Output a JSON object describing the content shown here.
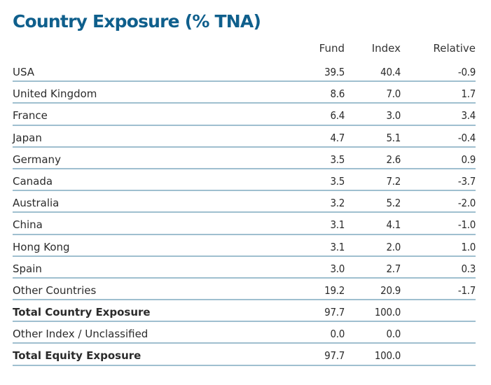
{
  "title": "Country Exposure (% TNA)",
  "columns": [
    "Fund",
    "Index",
    "Relative"
  ],
  "rows": [
    {
      "label": "USA",
      "fund": "39.5",
      "index": "40.4",
      "relative": "-0.9"
    },
    {
      "label": "United Kingdom",
      "fund": "8.6",
      "index": "7.0",
      "relative": "1.7"
    },
    {
      "label": "France",
      "fund": "6.4",
      "index": "3.0",
      "relative": "3.4"
    },
    {
      "label": "Japan",
      "fund": "4.7",
      "index": "5.1",
      "relative": "-0.4"
    },
    {
      "label": "Germany",
      "fund": "3.5",
      "index": "2.6",
      "relative": "0.9"
    },
    {
      "label": "Canada",
      "fund": "3.5",
      "index": "7.2",
      "relative": "-3.7"
    },
    {
      "label": "Australia",
      "fund": "3.2",
      "index": "5.2",
      "relative": "-2.0"
    },
    {
      "label": "China",
      "fund": "3.1",
      "index": "4.1",
      "relative": "-1.0"
    },
    {
      "label": "Hong Kong",
      "fund": "3.1",
      "index": "2.0",
      "relative": "1.0"
    },
    {
      "label": "Spain",
      "fund": "3.0",
      "index": "2.7",
      "relative": "0.3"
    },
    {
      "label": "Other Countries",
      "fund": "19.2",
      "index": "20.9",
      "relative": "-1.7"
    }
  ],
  "totals": [
    {
      "label": "Total Country Exposure",
      "fund": "97.7",
      "index": "100.0",
      "relative": ""
    },
    {
      "label": "Other Index / Unclassified",
      "fund": "0.0",
      "index": "0.0",
      "relative": ""
    },
    {
      "label": "Total Equity Exposure",
      "fund": "97.7",
      "index": "100.0",
      "relative": ""
    }
  ],
  "colors": {
    "title": "#0f5f8c",
    "rule": "#9fbfcf",
    "text": "#2b2b2b"
  }
}
